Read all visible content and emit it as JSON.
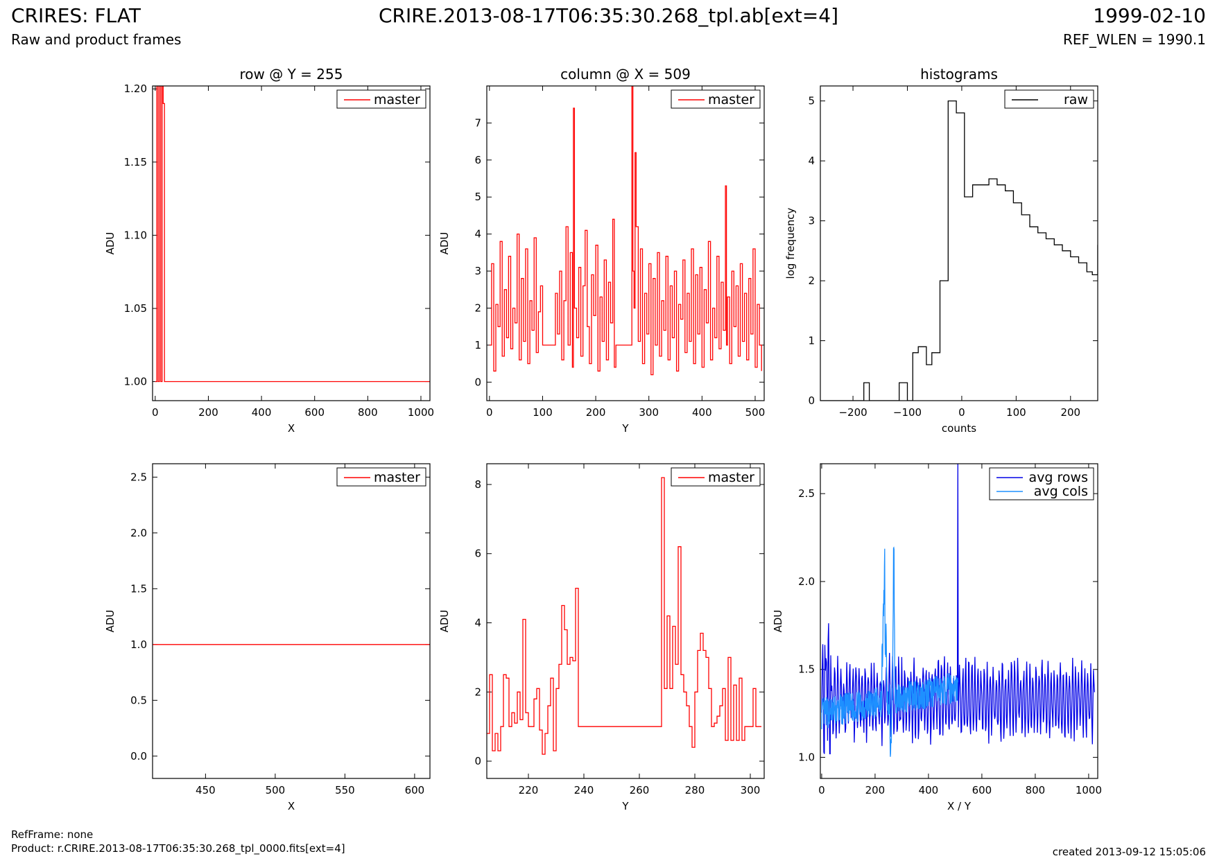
{
  "header": {
    "title": "CRIRES: FLAT",
    "subtitle": "Raw and product frames",
    "file": "CRIRE.2013-08-17T06:35:30.268_tpl.ab[ext=4]",
    "date": "1999-02-10",
    "ref_wlen": "REF_WLEN = 1990.1"
  },
  "footer": {
    "refframe": "RefFrame: none",
    "product": "Product: r.CRIRE.2013-08-17T06:35:30.268_tpl_0000.fits[ext=4]",
    "created": "created 2013-09-12 15:05:06"
  },
  "colors": {
    "master": "#ff0000",
    "raw": "#000000",
    "avg_rows": "#0000e6",
    "avg_cols": "#1e90ff"
  },
  "chart_data": [
    {
      "id": "row-full",
      "type": "line",
      "step": true,
      "title": "row @ Y = 255",
      "xlabel": "X",
      "ylabel": "ADU",
      "xlim": [
        -10,
        1034
      ],
      "ylim": [
        0.987,
        1.202
      ],
      "xticks": [
        0,
        200,
        400,
        600,
        800,
        1000
      ],
      "yticks": [
        1.0,
        1.05,
        1.1,
        1.15,
        1.2
      ],
      "ydec": 2,
      "legend": "top-right",
      "series": [
        {
          "name": "master",
          "color": "#ff0000",
          "x": [
            0,
            5,
            6,
            10,
            11,
            15,
            16,
            20,
            21,
            25,
            26,
            29,
            30,
            34,
            35,
            1034
          ],
          "y": [
            1.0,
            1.0,
            1.202,
            1.202,
            1.0,
            1.0,
            1.202,
            1.202,
            1.0,
            1.0,
            1.202,
            1.202,
            1.19,
            1.19,
            1.0,
            1.0
          ]
        }
      ]
    },
    {
      "id": "col-full",
      "type": "line",
      "step": true,
      "title": "column @ X = 509",
      "xlabel": "Y",
      "ylabel": "ADU",
      "xlim": [
        -5,
        517
      ],
      "ylim": [
        -0.5,
        8.0
      ],
      "xticks": [
        0,
        100,
        200,
        300,
        400,
        500
      ],
      "yticks": [
        0,
        1,
        2,
        3,
        4,
        5,
        6,
        7
      ],
      "ydec": 0,
      "legend": "top-right",
      "series": [
        {
          "name": "master",
          "color": "#ff0000",
          "x": [
            0,
            4,
            8,
            12,
            16,
            20,
            24,
            28,
            32,
            36,
            40,
            44,
            48,
            52,
            56,
            60,
            64,
            68,
            72,
            76,
            80,
            84,
            88,
            92,
            96,
            100,
            105,
            110,
            115,
            120,
            124,
            128,
            132,
            136,
            140,
            144,
            148,
            152,
            156,
            158,
            160,
            164,
            168,
            172,
            176,
            180,
            184,
            188,
            192,
            196,
            200,
            204,
            208,
            212,
            216,
            220,
            224,
            228,
            232,
            235,
            238,
            242,
            246,
            250,
            254,
            258,
            262,
            266,
            268,
            270,
            272,
            274,
            276,
            280,
            284,
            288,
            292,
            296,
            300,
            304,
            308,
            312,
            316,
            320,
            324,
            328,
            332,
            336,
            340,
            344,
            348,
            352,
            356,
            360,
            364,
            368,
            372,
            376,
            380,
            384,
            388,
            392,
            396,
            400,
            404,
            408,
            412,
            416,
            420,
            424,
            428,
            432,
            436,
            440,
            444,
            446,
            448,
            452,
            456,
            460,
            464,
            468,
            472,
            476,
            480,
            484,
            488,
            492,
            496,
            500,
            504,
            508,
            512
          ],
          "y": [
            1.0,
            3.2,
            0.3,
            2.1,
            1.5,
            3.8,
            0.7,
            2.5,
            1.2,
            3.4,
            0.9,
            2.0,
            1.6,
            4.0,
            0.6,
            2.8,
            1.1,
            3.6,
            0.5,
            2.2,
            1.4,
            3.9,
            0.8,
            1.9,
            2.6,
            1.0,
            1.0,
            1.0,
            1.0,
            1.0,
            2.4,
            1.3,
            3.0,
            0.6,
            2.2,
            4.2,
            1.0,
            3.5,
            0.4,
            7.4,
            2.0,
            1.2,
            3.1,
            0.7,
            2.6,
            4.1,
            1.5,
            0.5,
            2.9,
            1.8,
            3.7,
            0.3,
            2.3,
            1.1,
            3.3,
            0.6,
            2.7,
            1.6,
            4.4,
            0.4,
            1.0,
            1.0,
            1.0,
            1.0,
            1.0,
            1.0,
            1.0,
            1.0,
            8.0,
            3.0,
            2.0,
            6.2,
            4.2,
            1.1,
            3.6,
            0.5,
            2.4,
            1.3,
            3.2,
            0.2,
            2.8,
            1.0,
            3.5,
            0.7,
            2.2,
            1.4,
            3.4,
            0.6,
            2.6,
            1.2,
            3.0,
            0.3,
            2.1,
            1.7,
            3.3,
            0.8,
            2.4,
            1.1,
            3.6,
            0.5,
            2.9,
            1.3,
            3.1,
            0.4,
            2.5,
            1.6,
            3.8,
            0.6,
            2.0,
            1.2,
            3.4,
            0.9,
            2.7,
            1.4,
            5.3,
            1.0,
            2.3,
            0.5,
            3.0,
            1.5,
            2.6,
            0.7,
            3.2,
            1.1,
            2.4,
            0.6,
            2.8,
            1.3,
            3.6,
            0.4,
            2.1,
            1.0,
            0.3
          ]
        }
      ]
    },
    {
      "id": "hist",
      "type": "line",
      "step": true,
      "title": "histograms",
      "xlabel": "counts",
      "ylabel": "log frequency",
      "xlim": [
        -260,
        250
      ],
      "ylim": [
        0,
        5.25
      ],
      "xticks": [
        -200,
        -100,
        0,
        100,
        200
      ],
      "yticks": [
        0,
        1,
        2,
        3,
        4,
        5
      ],
      "ydec": 0,
      "xminus": true,
      "legend": "top-right",
      "series": [
        {
          "name": "raw",
          "color": "#000000",
          "x": [
            -260,
            -180,
            -170,
            -115,
            -100,
            -90,
            -80,
            -65,
            -55,
            -40,
            -25,
            -10,
            5,
            20,
            35,
            50,
            65,
            80,
            95,
            110,
            125,
            140,
            155,
            170,
            185,
            200,
            215,
            230,
            240,
            250
          ],
          "y": [
            0,
            0.3,
            0,
            0.3,
            0,
            0.8,
            0.9,
            0.6,
            0.8,
            2.0,
            5.0,
            4.8,
            3.4,
            3.6,
            3.6,
            3.7,
            3.6,
            3.5,
            3.3,
            3.1,
            2.9,
            2.8,
            2.7,
            2.6,
            2.5,
            2.4,
            2.3,
            2.15,
            2.1,
            2.6
          ]
        }
      ]
    },
    {
      "id": "row-zoom",
      "type": "line",
      "step": true,
      "title": "",
      "xlabel": "X",
      "ylabel": "ADU",
      "xlim": [
        412,
        611
      ],
      "ylim": [
        -0.2,
        2.62
      ],
      "xticks": [
        450,
        500,
        550,
        600
      ],
      "yticks": [
        0.0,
        0.5,
        1.0,
        1.5,
        2.0,
        2.5
      ],
      "ydec": 1,
      "legend": "top-right",
      "series": [
        {
          "name": "master",
          "color": "#ff0000",
          "x": [
            412,
            611
          ],
          "y": [
            1.0,
            1.0
          ]
        }
      ]
    },
    {
      "id": "col-zoom",
      "type": "line",
      "step": true,
      "title": "",
      "xlabel": "Y",
      "ylabel": "ADU",
      "xlim": [
        205,
        305
      ],
      "ylim": [
        -0.5,
        8.6
      ],
      "xticks": [
        220,
        240,
        260,
        280,
        300
      ],
      "yticks": [
        0,
        2,
        4,
        6,
        8
      ],
      "ydec": 0,
      "legend": "top-right",
      "series": [
        {
          "name": "master",
          "color": "#ff0000",
          "x": [
            205,
            206,
            207,
            208,
            209,
            210,
            211,
            212,
            213,
            214,
            215,
            216,
            217,
            218,
            219,
            220,
            221,
            222,
            223,
            224,
            225,
            226,
            227,
            228,
            229,
            230,
            231,
            232,
            233,
            234,
            235,
            236,
            237,
            238,
            267,
            268,
            269,
            270,
            271,
            272,
            273,
            274,
            275,
            276,
            277,
            278,
            279,
            280,
            281,
            282,
            283,
            284,
            285,
            286,
            287,
            288,
            289,
            290,
            291,
            292,
            293,
            294,
            295,
            296,
            297,
            298,
            299,
            300,
            301,
            302,
            303,
            304
          ],
          "y": [
            0.8,
            2.5,
            0.3,
            0.8,
            0.3,
            1.0,
            2.5,
            2.4,
            1.0,
            1.4,
            1.1,
            2.0,
            1.2,
            4.1,
            1.4,
            1.0,
            1.0,
            1.8,
            2.1,
            0.9,
            0.2,
            0.8,
            1.6,
            2.4,
            0.3,
            2.1,
            2.8,
            4.5,
            3.8,
            2.8,
            3.0,
            2.9,
            5.0,
            1.0,
            1.0,
            8.2,
            2.1,
            4.2,
            2.1,
            3.9,
            2.8,
            6.2,
            2.5,
            2.0,
            1.6,
            1.0,
            0.4,
            2.0,
            3.2,
            3.7,
            3.2,
            3.0,
            2.1,
            1.0,
            1.1,
            1.3,
            1.6,
            2.1,
            0.6,
            3.0,
            0.6,
            2.2,
            0.6,
            2.4,
            0.6,
            1.0,
            1.0,
            1.0,
            2.1,
            1.0,
            1.0,
            1.0
          ]
        }
      ]
    },
    {
      "id": "avg",
      "type": "line",
      "step": false,
      "title": "",
      "xlabel": "X / Y",
      "ylabel": "ADU",
      "xlim": [
        -5,
        1034
      ],
      "ylim": [
        0.88,
        2.67
      ],
      "xticks": [
        0,
        200,
        400,
        600,
        800,
        1000
      ],
      "yticks": [
        1.0,
        1.5,
        2.0,
        2.5
      ],
      "ydec": 1,
      "legend": "top-right",
      "series": [
        {
          "name": "avg rows",
          "color": "#0000e6",
          "generated": "rows"
        },
        {
          "name": "avg cols",
          "color": "#1e90ff",
          "generated": "cols"
        }
      ]
    }
  ]
}
